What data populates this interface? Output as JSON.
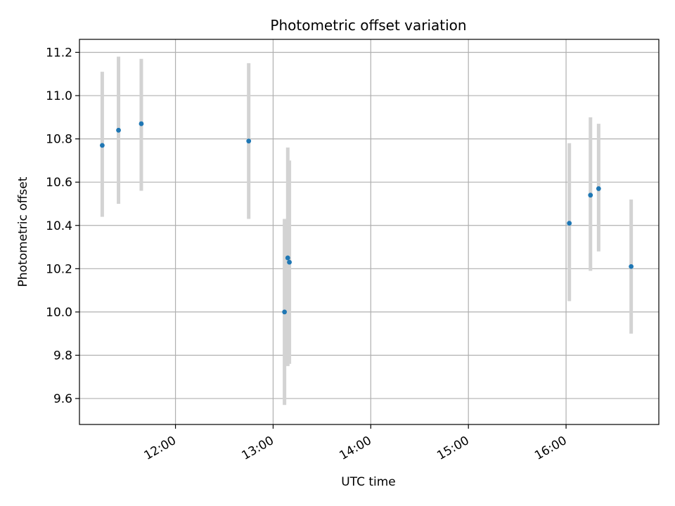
{
  "chart_data": {
    "type": "scatter",
    "title": "Photometric offset variation",
    "xlabel": "UTC time",
    "ylabel": "Photometric offset",
    "xlim": [
      "11:01",
      "16:57"
    ],
    "ylim": [
      9.48,
      11.26
    ],
    "x_ticks": [
      "12:00",
      "13:00",
      "14:00",
      "15:00",
      "16:00"
    ],
    "y_ticks": [
      9.6,
      9.8,
      10.0,
      10.2,
      10.4,
      10.6,
      10.8,
      11.0,
      11.2
    ],
    "grid": true,
    "legend": "none",
    "colors": {
      "point": "#1f77b4",
      "errorbar": "#d3d3d3",
      "grid": "#b0b0b0"
    },
    "series": [
      {
        "points": [
          {
            "x": "11:15",
            "y": 10.77,
            "ylow": 10.44,
            "yhigh": 11.11
          },
          {
            "x": "11:25",
            "y": 10.84,
            "ylow": 10.5,
            "yhigh": 11.18
          },
          {
            "x": "11:39",
            "y": 10.87,
            "ylow": 10.56,
            "yhigh": 11.17
          },
          {
            "x": "12:45",
            "y": 10.79,
            "ylow": 10.43,
            "yhigh": 11.15
          },
          {
            "x": "13:07",
            "y": 10.0,
            "ylow": 9.57,
            "yhigh": 10.43
          },
          {
            "x": "13:09",
            "y": 10.25,
            "ylow": 9.75,
            "yhigh": 10.76
          },
          {
            "x": "13:10",
            "y": 10.23,
            "ylow": 9.76,
            "yhigh": 10.7
          },
          {
            "x": "16:02",
            "y": 10.41,
            "ylow": 10.05,
            "yhigh": 10.78
          },
          {
            "x": "16:15",
            "y": 10.54,
            "ylow": 10.19,
            "yhigh": 10.9
          },
          {
            "x": "16:20",
            "y": 10.57,
            "ylow": 10.28,
            "yhigh": 10.87
          },
          {
            "x": "16:40",
            "y": 10.21,
            "ylow": 9.9,
            "yhigh": 10.52
          }
        ]
      }
    ]
  }
}
